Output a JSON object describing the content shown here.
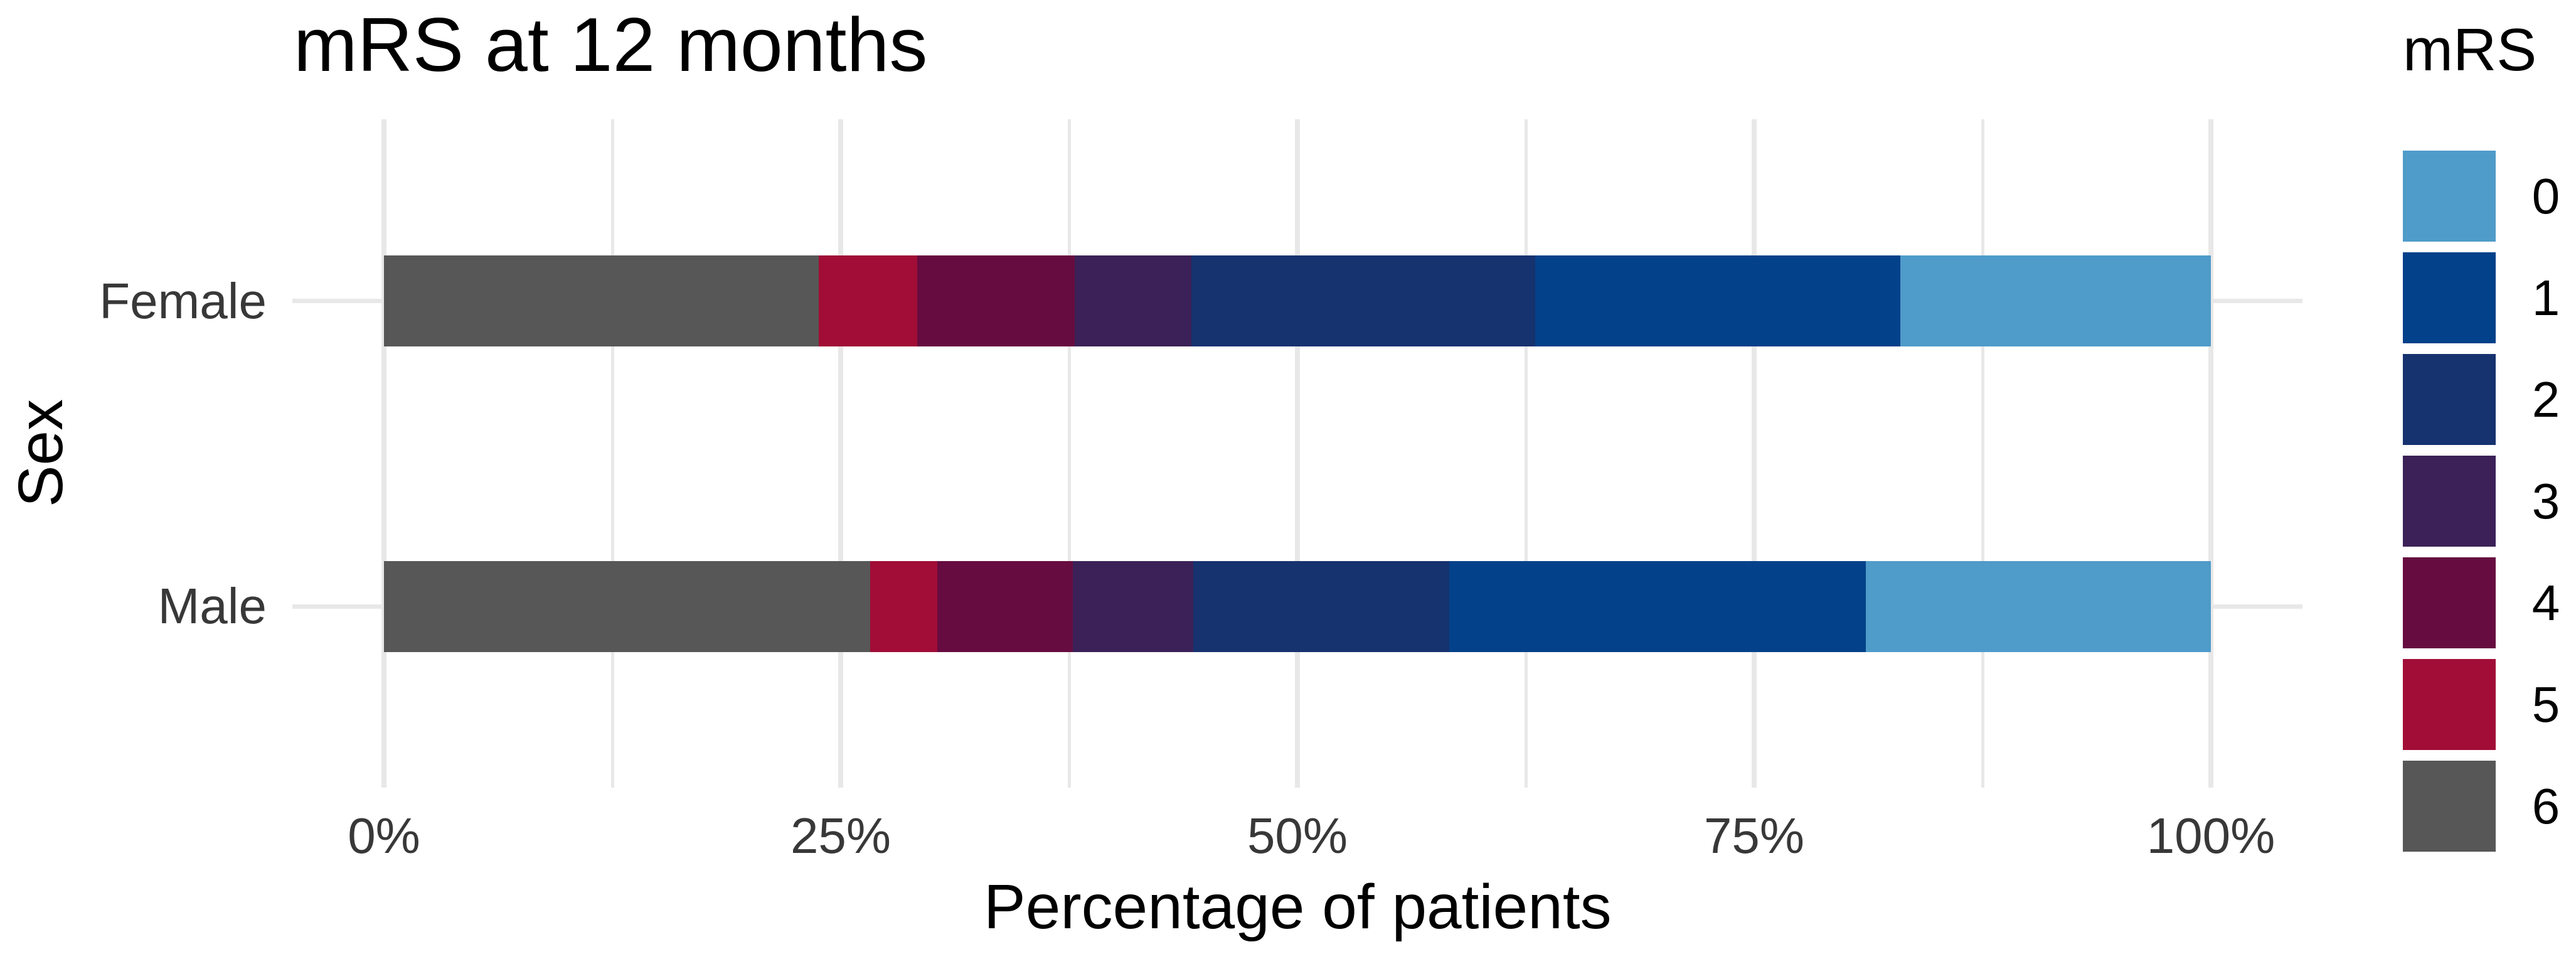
{
  "title": "mRS at 12 months",
  "x_axis": {
    "label": "Percentage of patients",
    "tick_labels": [
      "0%",
      "25%",
      "50%",
      "75%",
      "100%"
    ]
  },
  "y_axis": {
    "label": "Sex",
    "categories": [
      "Female",
      "Male"
    ]
  },
  "legend": {
    "title": "mRS",
    "entries": [
      {
        "label": "0",
        "color": "#4F9BC9"
      },
      {
        "label": "1",
        "color": "#03418A"
      },
      {
        "label": "2",
        "color": "#16326F"
      },
      {
        "label": "3",
        "color": "#3B2157"
      },
      {
        "label": "4",
        "color": "#670C40"
      },
      {
        "label": "5",
        "color": "#A10D37"
      },
      {
        "label": "6",
        "color": "#575757"
      }
    ]
  },
  "chart_data": {
    "type": "bar",
    "orientation": "horizontal",
    "stacked": true,
    "title": "mRS at 12 months",
    "xlabel": "Percentage of patients",
    "ylabel": "Sex",
    "xlim": [
      0,
      100
    ],
    "x_ticks_major": [
      0,
      25,
      50,
      75,
      100
    ],
    "x_ticks_minor": [
      12.5,
      37.5,
      62.5,
      87.5
    ],
    "x_tick_labels": [
      "0%",
      "25%",
      "50%",
      "75%",
      "100%"
    ],
    "categories": [
      "Female",
      "Male"
    ],
    "series": [
      {
        "name": "0",
        "color": "#4F9BC9",
        "values": [
          17.0,
          18.9
        ]
      },
      {
        "name": "1",
        "color": "#03418A",
        "values": [
          20.0,
          22.8
        ]
      },
      {
        "name": "2",
        "color": "#16326F",
        "values": [
          18.8,
          14.0
        ]
      },
      {
        "name": "3",
        "color": "#3B2157",
        "values": [
          6.4,
          6.6
        ]
      },
      {
        "name": "4",
        "color": "#670C40",
        "values": [
          8.6,
          7.4
        ]
      },
      {
        "name": "5",
        "color": "#A10D37",
        "values": [
          5.4,
          3.7
        ]
      },
      {
        "name": "6",
        "color": "#575757",
        "values": [
          23.8,
          26.6
        ]
      }
    ],
    "stack_order_left_to_right": [
      "6",
      "5",
      "4",
      "3",
      "2",
      "1",
      "0"
    ],
    "legend_title": "mRS",
    "legend_position": "right",
    "grid": true
  },
  "colors": {
    "background": "#FFFFFF",
    "gridline": "#E8E8E8",
    "axis_text": "#383838",
    "title_text": "#000000"
  }
}
